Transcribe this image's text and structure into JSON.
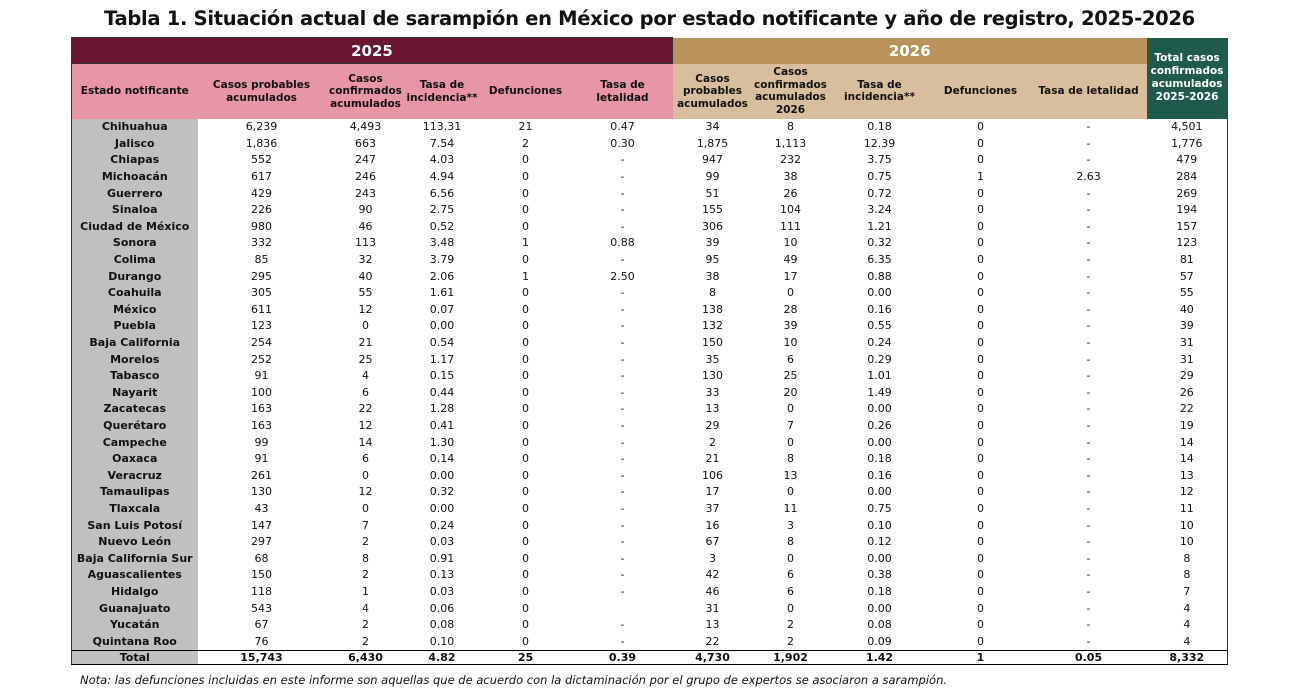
{
  "title": "Tabla 1. Situación actual de sarampión en México por estado notificante y año de registro, 2025-2026",
  "header": {
    "year_2025": "2025",
    "year_2026": "2026",
    "total_col": "Total casos confirmados acumulados 2025-2026",
    "state_col": "Estado notificante",
    "cols_2025": [
      "Casos probables acumulados",
      "Casos confirmados acumulados",
      "Tasa de incidencia**",
      "Defunciones",
      "Tasa de letalidad"
    ],
    "cols_2026": [
      "Casos probables acumulados",
      "Casos confirmados acumulados 2026",
      "Tasa de incidencia**",
      "Defunciones",
      "Tasa de letalidad"
    ]
  },
  "rows": [
    [
      "Chihuahua",
      "6,239",
      "4,493",
      "113.31",
      "21",
      "0.47",
      "34",
      "8",
      "0.18",
      "0",
      "-",
      "4,501"
    ],
    [
      "Jalisco",
      "1,836",
      "663",
      "7.54",
      "2",
      "0.30",
      "1,875",
      "1,113",
      "12.39",
      "0",
      "-",
      "1,776"
    ],
    [
      "Chiapas",
      "552",
      "247",
      "4.03",
      "0",
      "-",
      "947",
      "232",
      "3.75",
      "0",
      "-",
      "479"
    ],
    [
      "Michoacán",
      "617",
      "246",
      "4.94",
      "0",
      "-",
      "99",
      "38",
      "0.75",
      "1",
      "2.63",
      "284"
    ],
    [
      "Guerrero",
      "429",
      "243",
      "6.56",
      "0",
      "-",
      "51",
      "26",
      "0.72",
      "0",
      "-",
      "269"
    ],
    [
      "Sinaloa",
      "226",
      "90",
      "2.75",
      "0",
      "-",
      "155",
      "104",
      "3.24",
      "0",
      "-",
      "194"
    ],
    [
      "Ciudad de México",
      "980",
      "46",
      "0.52",
      "0",
      "-",
      "306",
      "111",
      "1.21",
      "0",
      "-",
      "157"
    ],
    [
      "Sonora",
      "332",
      "113",
      "3.48",
      "1",
      "0.88",
      "39",
      "10",
      "0.32",
      "0",
      "-",
      "123"
    ],
    [
      "Colima",
      "85",
      "32",
      "3.79",
      "0",
      "-",
      "95",
      "49",
      "6.35",
      "0",
      "-",
      "81"
    ],
    [
      "Durango",
      "295",
      "40",
      "2.06",
      "1",
      "2.50",
      "38",
      "17",
      "0.88",
      "0",
      "-",
      "57"
    ],
    [
      "Coahuila",
      "305",
      "55",
      "1.61",
      "0",
      "-",
      "8",
      "0",
      "0.00",
      "0",
      "-",
      "55"
    ],
    [
      "México",
      "611",
      "12",
      "0.07",
      "0",
      "-",
      "138",
      "28",
      "0.16",
      "0",
      "-",
      "40"
    ],
    [
      "Puebla",
      "123",
      "0",
      "0.00",
      "0",
      "-",
      "132",
      "39",
      "0.55",
      "0",
      "-",
      "39"
    ],
    [
      "Baja California",
      "254",
      "21",
      "0.54",
      "0",
      "-",
      "150",
      "10",
      "0.24",
      "0",
      "-",
      "31"
    ],
    [
      "Morelos",
      "252",
      "25",
      "1.17",
      "0",
      "-",
      "35",
      "6",
      "0.29",
      "0",
      "-",
      "31"
    ],
    [
      "Tabasco",
      "91",
      "4",
      "0.15",
      "0",
      "-",
      "130",
      "25",
      "1.01",
      "0",
      "-",
      "29"
    ],
    [
      "Nayarit",
      "100",
      "6",
      "0.44",
      "0",
      "-",
      "33",
      "20",
      "1.49",
      "0",
      "-",
      "26"
    ],
    [
      "Zacatecas",
      "163",
      "22",
      "1.28",
      "0",
      "-",
      "13",
      "0",
      "0.00",
      "0",
      "-",
      "22"
    ],
    [
      "Querétaro",
      "163",
      "12",
      "0.41",
      "0",
      "-",
      "29",
      "7",
      "0.26",
      "0",
      "-",
      "19"
    ],
    [
      "Campeche",
      "99",
      "14",
      "1.30",
      "0",
      "-",
      "2",
      "0",
      "0.00",
      "0",
      "-",
      "14"
    ],
    [
      "Oaxaca",
      "91",
      "6",
      "0.14",
      "0",
      "-",
      "21",
      "8",
      "0.18",
      "0",
      "-",
      "14"
    ],
    [
      "Veracruz",
      "261",
      "0",
      "0.00",
      "0",
      "-",
      "106",
      "13",
      "0.16",
      "0",
      "-",
      "13"
    ],
    [
      "Tamaulipas",
      "130",
      "12",
      "0.32",
      "0",
      "-",
      "17",
      "0",
      "0.00",
      "0",
      "-",
      "12"
    ],
    [
      "Tlaxcala",
      "43",
      "0",
      "0.00",
      "0",
      "-",
      "37",
      "11",
      "0.75",
      "0",
      "-",
      "11"
    ],
    [
      "San Luis Potosí",
      "147",
      "7",
      "0.24",
      "0",
      "-",
      "16",
      "3",
      "0.10",
      "0",
      "-",
      "10"
    ],
    [
      "Nuevo León",
      "297",
      "2",
      "0.03",
      "0",
      "-",
      "67",
      "8",
      "0.12",
      "0",
      "-",
      "10"
    ],
    [
      "Baja California Sur",
      "68",
      "8",
      "0.91",
      "0",
      "-",
      "3",
      "0",
      "0.00",
      "0",
      "-",
      "8"
    ],
    [
      "Aguascalientes",
      "150",
      "2",
      "0.13",
      "0",
      "-",
      "42",
      "6",
      "0.38",
      "0",
      "-",
      "8"
    ],
    [
      "Hidalgo",
      "118",
      "1",
      "0.03",
      "0",
      "-",
      "46",
      "6",
      "0.18",
      "0",
      "-",
      "7"
    ],
    [
      "Guanajuato",
      "543",
      "4",
      "0.06",
      "0",
      "",
      "31",
      "0",
      "0.00",
      "0",
      "-",
      "4"
    ],
    [
      "Yucatán",
      "67",
      "2",
      "0.08",
      "0",
      "-",
      "13",
      "2",
      "0.08",
      "0",
      "-",
      "4"
    ],
    [
      "Quintana Roo",
      "76",
      "2",
      "0.10",
      "0",
      "-",
      "22",
      "2",
      "0.09",
      "0",
      "-",
      "4"
    ]
  ],
  "total": [
    "Total",
    "15,743",
    "6,430",
    "4.82",
    "25",
    "0.39",
    "4,730",
    "1,902",
    "1.42",
    "1",
    "0.05",
    "8,332"
  ],
  "note": "Nota: las defunciones incluidas en este informe son aquellas que de acuerdo con la dictaminación por el grupo de expertos se asociaron a sarampión.",
  "colors": {
    "header_2025": "#6b1631",
    "subheader_2025": "#e796a6",
    "header_2026": "#b8935a",
    "subheader_2026": "#d8be9c",
    "total_header": "#1f5b4b",
    "state_column": "#c0c0c0"
  }
}
